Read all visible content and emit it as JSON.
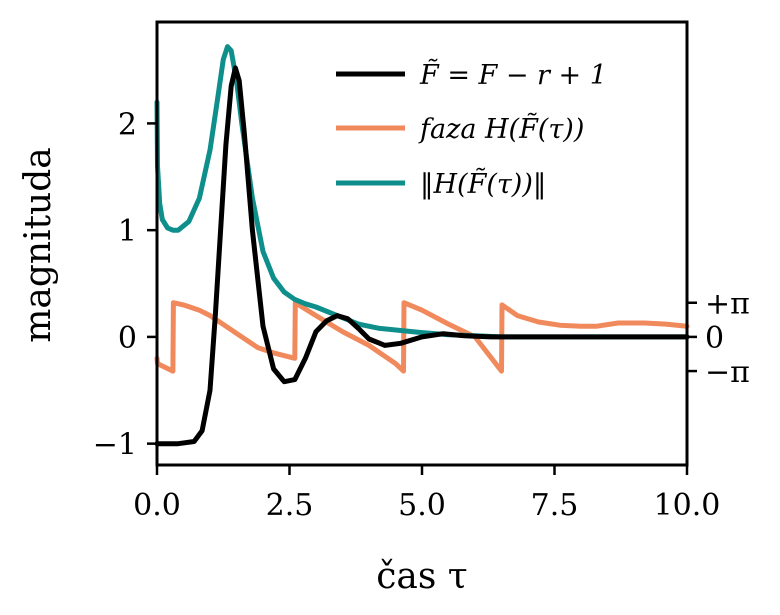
{
  "chart_data": {
    "type": "line",
    "xlabel": "čas τ",
    "ylabel": "magnituda",
    "xlim": [
      0,
      10
    ],
    "ylim": [
      -1.2,
      2.95
    ],
    "x_ticks": [
      0,
      2.5,
      5,
      7.5,
      10
    ],
    "x_tick_labels": [
      "0.0",
      "2.5",
      "5.0",
      "7.5",
      "10.0"
    ],
    "y_ticks": [
      -1,
      0,
      1,
      2
    ],
    "y_tick_labels": [
      "−1",
      "0",
      "1",
      "2"
    ],
    "y2_scale": "phase mapped so that π ↔ 0.32 in magnitude units",
    "y2_ticks": [
      0.32,
      0,
      -0.32
    ],
    "y2_tick_labels": [
      "+π",
      "0",
      "−π"
    ],
    "legend_position": "top-right",
    "series": [
      {
        "name": "F̃ = F − r + 1",
        "color": "#000000",
        "x": [
          0,
          0.4,
          0.7,
          0.85,
          1.0,
          1.1,
          1.2,
          1.3,
          1.4,
          1.48,
          1.55,
          1.65,
          1.8,
          2.0,
          2.2,
          2.4,
          2.6,
          2.8,
          3.0,
          3.2,
          3.4,
          3.6,
          3.8,
          4.0,
          4.3,
          4.6,
          5.0,
          5.4,
          5.8,
          6.3,
          7.0,
          8.0,
          9.0,
          10.0
        ],
        "y": [
          -1.0,
          -1.0,
          -0.98,
          -0.88,
          -0.5,
          0.2,
          1.0,
          1.8,
          2.35,
          2.52,
          2.4,
          1.9,
          1.0,
          0.1,
          -0.3,
          -0.42,
          -0.4,
          -0.2,
          0.05,
          0.15,
          0.2,
          0.17,
          0.08,
          -0.02,
          -0.08,
          -0.06,
          0.0,
          0.03,
          0.01,
          0.0,
          0.0,
          0.0,
          0.0,
          0.0
        ]
      },
      {
        "name": "faza H(F̃(τ))",
        "color": "#f08a5d",
        "x": [
          0,
          0.01,
          0.3,
          0.31,
          0.5,
          0.8,
          1.0,
          1.3,
          1.6,
          1.9,
          2.2,
          2.6,
          2.61,
          3.0,
          3.5,
          4.0,
          4.5,
          4.65,
          4.66,
          5.0,
          5.5,
          6.0,
          6.5,
          6.51,
          6.8,
          7.2,
          7.6,
          8.0,
          8.3,
          8.7,
          9.2,
          9.6,
          10.0
        ],
        "y": [
          -0.2,
          -0.25,
          -0.32,
          0.32,
          0.3,
          0.25,
          0.2,
          0.1,
          0.0,
          -0.1,
          -0.15,
          -0.2,
          0.32,
          0.2,
          0.05,
          -0.08,
          -0.25,
          -0.32,
          0.32,
          0.25,
          0.12,
          0.0,
          -0.32,
          0.3,
          0.2,
          0.14,
          0.11,
          0.1,
          0.1,
          0.13,
          0.13,
          0.12,
          0.1
        ]
      },
      {
        "name": "‖H(F̃(τ))‖",
        "color": "#0e8f8c",
        "x": [
          0,
          0.01,
          0.05,
          0.1,
          0.2,
          0.3,
          0.4,
          0.6,
          0.8,
          1.0,
          1.15,
          1.25,
          1.33,
          1.4,
          1.5,
          1.6,
          1.8,
          2.0,
          2.2,
          2.4,
          2.6,
          2.8,
          3.0,
          3.4,
          3.8,
          4.2,
          4.6,
          5.0,
          5.5,
          6.0,
          6.5,
          7.0,
          8.0,
          9.0,
          10.0
        ],
        "y": [
          2.2,
          1.6,
          1.25,
          1.1,
          1.02,
          1.0,
          1.0,
          1.08,
          1.3,
          1.75,
          2.25,
          2.6,
          2.72,
          2.68,
          2.4,
          2.0,
          1.3,
          0.8,
          0.55,
          0.42,
          0.35,
          0.31,
          0.28,
          0.2,
          0.12,
          0.08,
          0.06,
          0.04,
          0.02,
          0.01,
          0.0,
          0.0,
          0.0,
          0.0,
          0.0
        ]
      }
    ]
  }
}
